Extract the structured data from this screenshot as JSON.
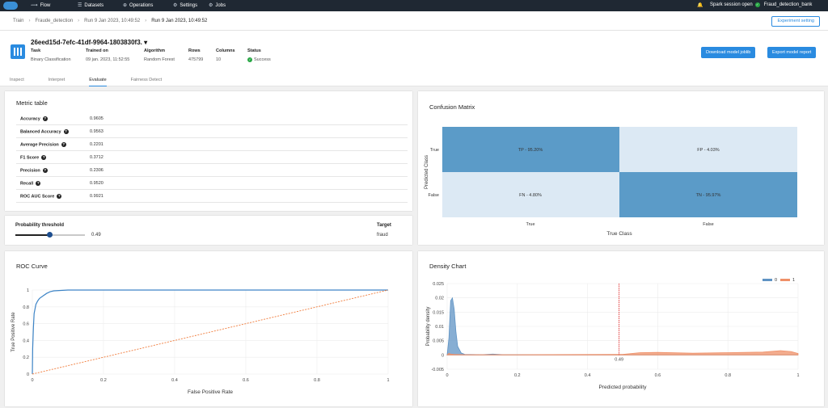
{
  "nav": {
    "flow": "Flow",
    "datasets": "Datasets",
    "operations": "Operations",
    "settings": "Settings",
    "jobs": "Jobs",
    "spark": "Spark session open",
    "bank": "Fraud_detection_bank"
  },
  "breadcrumb": {
    "items": [
      "Train",
      "Fraude_detection",
      "Run 9 Jan 2023, 10:49:52",
      "Run 9 Jan 2023, 10:49:52"
    ],
    "experiment_button": "Experiment setting"
  },
  "model": {
    "id": "26eed15d-7efc-41df-9964-1803830f3.",
    "task_label": "Task",
    "task": "Binary Classification",
    "trained_label": "Trained on",
    "trained": "09 jan. 2023, 11:52:55",
    "algo_label": "Algorithm",
    "algo": "Random Forest",
    "rows_label": "Rows",
    "rows": "475799",
    "cols_label": "Columns",
    "cols": "10",
    "status_label": "Status",
    "status": "Success",
    "download_btn": "Download model joblib",
    "export_btn": "Export model report"
  },
  "tabs": [
    "Inspect",
    "Interpret",
    "Evaluate",
    "Fairness Detect"
  ],
  "metric": {
    "title": "Metric table",
    "rows": [
      {
        "label": "Accuracy",
        "value": "0.9605"
      },
      {
        "label": "Balanced Accuracy",
        "value": "0.9563"
      },
      {
        "label": "Average Precision",
        "value": "0.2201"
      },
      {
        "label": "F1 Score",
        "value": "0.3712"
      },
      {
        "label": "Precision",
        "value": "0.2306"
      },
      {
        "label": "Recall",
        "value": "0.9520"
      },
      {
        "label": "ROC AUC Score",
        "value": "0.9921"
      }
    ]
  },
  "threshold": {
    "label": "Probability threshold",
    "value": "0.49",
    "fraction": 0.49,
    "target_label": "Target",
    "target": "fraud"
  },
  "confusion": {
    "title": "Confusion Matrix",
    "tp": "TP - 95.20%",
    "fp": "FP - 4.03%",
    "fn": "FN - 4.80%",
    "tn": "TN - 95.97%",
    "ylabel": "Predicted Class",
    "xlabel": "True Class",
    "y_true": "True",
    "y_false": "False",
    "x_true": "True",
    "x_false": "False",
    "dark": "#5b9bc8",
    "light": "#dce9f4"
  },
  "roc": {
    "title": "ROC Curve"
  },
  "density": {
    "title": "Density Chart"
  },
  "chart_data": [
    {
      "type": "line",
      "title": "ROC Curve",
      "xlabel": "False Positive Rate",
      "ylabel": "True Positive Rate",
      "xlim": [
        0,
        1
      ],
      "ylim": [
        0,
        1
      ],
      "x_ticks": [
        "0",
        "0.2",
        "0.4",
        "0.6",
        "0.8",
        "1"
      ],
      "y_ticks": [
        "0",
        "0.2",
        "0.4",
        "0.6",
        "0.8",
        "1"
      ],
      "series": [
        {
          "name": "ROC",
          "color": "#3d84c6",
          "x": [
            0,
            0.001,
            0.003,
            0.005,
            0.01,
            0.015,
            0.02,
            0.03,
            0.04,
            0.05,
            0.06,
            0.08,
            0.1,
            0.2,
            0.4,
            0.6,
            0.8,
            1
          ],
          "y": [
            0,
            0.3,
            0.55,
            0.72,
            0.83,
            0.87,
            0.9,
            0.93,
            0.96,
            0.98,
            0.99,
            0.995,
            1,
            1,
            1,
            1,
            1,
            1
          ]
        },
        {
          "name": "Baseline",
          "color": "#f07c3c",
          "x": [
            0,
            1
          ],
          "y": [
            0,
            1
          ],
          "dash": true
        }
      ]
    },
    {
      "type": "area",
      "title": "Density Chart",
      "xlabel": "Predicted probability",
      "ylabel": "Probability density",
      "xlim": [
        0,
        1
      ],
      "ylim": [
        -0.005,
        0.025
      ],
      "x_ticks": [
        "0",
        "0.2",
        "0.4",
        "0.6",
        "0.8",
        "1"
      ],
      "y_ticks": [
        "-0.005",
        "0",
        "0.005",
        "0.01",
        "0.015",
        "0.02",
        "0.025"
      ],
      "threshold": 0.49,
      "threshold_label": "0.49",
      "series": [
        {
          "name": "0",
          "color": "#5f93c4",
          "x": [
            0,
            0.005,
            0.01,
            0.015,
            0.02,
            0.025,
            0.03,
            0.04,
            0.05,
            0.1,
            0.13,
            0.16,
            0.3,
            1
          ],
          "y": [
            0,
            0.006,
            0.019,
            0.02,
            0.016,
            0.008,
            0.003,
            0.0007,
            0.0002,
            0.0001,
            0.0003,
            0.0001,
            0,
            0
          ]
        },
        {
          "name": "1",
          "color": "#ef9068",
          "x": [
            0,
            0.005,
            0.01,
            0.02,
            0.05,
            0.2,
            0.5,
            0.55,
            0.6,
            0.7,
            0.8,
            0.9,
            0.95,
            0.98,
            1
          ],
          "y": [
            0,
            0.0006,
            0.0003,
            0.0002,
            0.0001,
            0.0001,
            0.0002,
            0.0008,
            0.0009,
            0.0006,
            0.0008,
            0.001,
            0.0015,
            0.0012,
            0.0005
          ]
        }
      ]
    }
  ]
}
